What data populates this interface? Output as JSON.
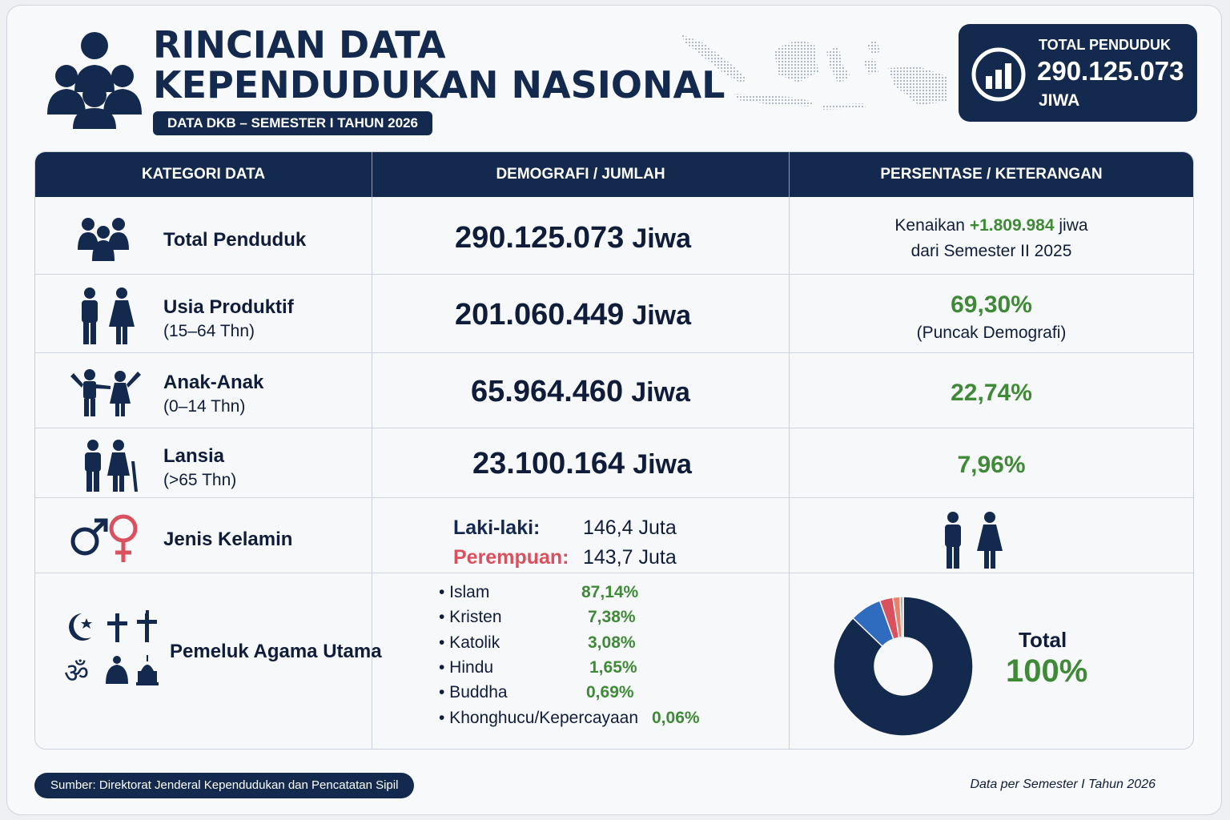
{
  "header": {
    "title_line1": "RINCIAN DATA",
    "title_line2": "KEPENDUDUKAN NASIONAL",
    "subtitle": "DATA DKB – SEMESTER I TAHUN 2026",
    "total_box": {
      "label": "TOTAL PENDUDUK",
      "value": "290.125.073",
      "unit": "JIWA"
    }
  },
  "table": {
    "headers": [
      "KATEGORI DATA",
      "DEMOGRAFI / JUMLAH",
      "PERSENTASE / KETERANGAN"
    ],
    "total": {
      "label": "Total Penduduk",
      "value": "290.125.073",
      "unit": "Jiwa",
      "note_prefix": "Kenaikan",
      "note_increase": "+1.809.984",
      "note_unit": "jiwa",
      "note_line2": "dari Semester II 2025"
    },
    "productive": {
      "label": "Usia Produktif",
      "sub": "(15–64 Thn)",
      "value": "201.060.449",
      "unit": "Jiwa",
      "percent": "69,30%",
      "note": "(Puncak Demografi)"
    },
    "children": {
      "label": "Anak-Anak",
      "sub": "(0–14 Thn)",
      "value": "65.964.460",
      "unit": "Jiwa",
      "percent": "22,74%"
    },
    "elderly": {
      "label": "Lansia",
      "sub": "(>65 Thn)",
      "value": "23.100.164",
      "unit": "Jiwa",
      "percent": "7,96%"
    },
    "gender": {
      "label": "Jenis Kelamin",
      "male_label": "Laki-laki:",
      "male_value": "146,4 Juta",
      "female_label": "Perempuan:",
      "female_value": "143,7 Juta"
    },
    "religion": {
      "label": "Pemeluk Agama Utama",
      "items": [
        {
          "name": "Islam",
          "percent": "87,14%"
        },
        {
          "name": "Kristen",
          "percent": "7,38%"
        },
        {
          "name": "Katolik",
          "percent": "3,08%"
        },
        {
          "name": "Hindu",
          "percent": "1,65%"
        },
        {
          "name": "Buddha",
          "percent": "0,69%"
        },
        {
          "name": "Khonghucu/Kepercayaan",
          "percent": "0,06%"
        }
      ],
      "total_label": "Total",
      "total_value": "100%"
    }
  },
  "chart_data": {
    "type": "pie",
    "categories": [
      "Islam",
      "Kristen",
      "Katolik",
      "Hindu",
      "Buddha",
      "Khonghucu/Kepercayaan"
    ],
    "values": [
      87.14,
      7.38,
      3.08,
      1.65,
      0.69,
      0.06
    ],
    "colors": [
      "#13294e",
      "#2f6cc0",
      "#d9505f",
      "#e8836a",
      "#a8a8a8",
      "#3f8a37"
    ]
  },
  "footer": {
    "source": "Sumber: Direktorat Jenderal Kependudukan dan Pencatatan Sipil",
    "period": "Data per Semester I Tahun 2026"
  }
}
